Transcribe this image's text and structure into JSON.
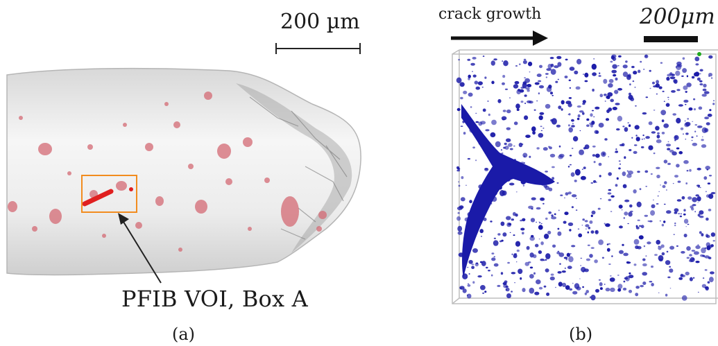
{
  "panel_a": {
    "scale_bar_label": "200 µm",
    "annotation": "PFIB VOI, Box A",
    "caption": "(a)",
    "colors": {
      "sample": "#ececec",
      "pores": "#d46a74",
      "crack": "#e02020",
      "box": "#f28c1e"
    }
  },
  "panel_b": {
    "arrow_label": "crack growth",
    "scale_bar_label": "200μm",
    "caption": "(b)",
    "colors": {
      "pores": "#1a1aa8",
      "frame": "#bdbdbd"
    }
  }
}
